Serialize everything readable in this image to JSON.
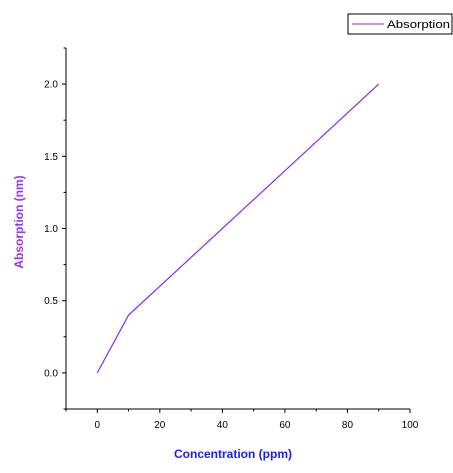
{
  "chart_data": {
    "type": "line",
    "xlabel": "Concentration (ppm)",
    "ylabel": "Absorption (nm)",
    "xlim": [
      -10,
      100
    ],
    "ylim": [
      -0.25,
      2.25
    ],
    "xticks": [
      0,
      20,
      40,
      60,
      80,
      100
    ],
    "yticks": [
      0.0,
      0.5,
      1.0,
      1.5,
      2.0
    ],
    "xtick_labels": [
      "0",
      "20",
      "40",
      "60",
      "80",
      "100"
    ],
    "ytick_labels": [
      "0.0",
      "0.5",
      "1.0",
      "1.5",
      "2.0"
    ],
    "series": [
      {
        "name": "Absorption",
        "x": [
          0,
          10,
          90
        ],
        "y": [
          0.0,
          0.4,
          2.0
        ],
        "color": "#8a2be2"
      }
    ],
    "legend": {
      "position": "top-right",
      "visible": true
    },
    "grid": false,
    "label_color": "#1a1aff",
    "ylabel_color": "#9933ff"
  }
}
